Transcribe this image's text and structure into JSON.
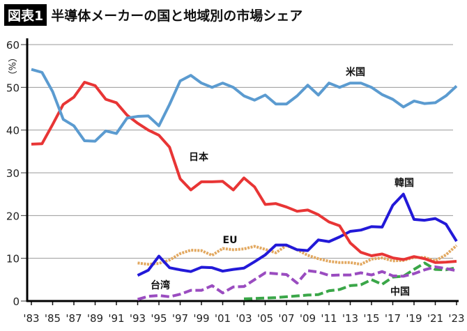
{
  "title": {
    "badge": "図表1",
    "text": "半導体メーカーの国と地域別の市場シェア"
  },
  "chart_data": {
    "type": "line",
    "title": "半導体メーカーの国と地域別の市場シェア",
    "ylabel": "（%）",
    "ylim": [
      0,
      60
    ],
    "yticks": [
      "0",
      "10",
      "20",
      "30",
      "40",
      "50",
      "60"
    ],
    "xlim": [
      1983,
      2023
    ],
    "xtick_labels": [
      "'83",
      "'85",
      "'87",
      "'89",
      "'91",
      "'93",
      "'95",
      "'97",
      "'99",
      "'01",
      "'03",
      "'05",
      "'07",
      "'09",
      "'11",
      "'13",
      "'15",
      "'17",
      "'19",
      "'21",
      "'23"
    ],
    "grid": true,
    "series": [
      {
        "name": "米国",
        "color": "#5b9bd0",
        "dash": "solid",
        "start": 1983,
        "values": [
          54.2,
          53.5,
          49,
          42.5,
          41,
          37.5,
          37.4,
          39.8,
          39.2,
          42.8,
          43.2,
          43.3,
          41,
          46,
          51.5,
          52.8,
          51,
          50,
          51,
          50,
          48,
          47,
          48.2,
          46.1,
          46.1,
          48,
          50.5,
          48.2,
          51,
          50,
          51,
          51,
          50,
          48.3,
          47.2,
          45.4,
          46.8,
          46.2,
          46.4,
          48,
          50.3
        ]
      },
      {
        "name": "日本",
        "color": "#e83535",
        "dash": "solid",
        "start": 1983,
        "values": [
          36.7,
          36.8,
          41.3,
          46,
          47.7,
          51.2,
          50.4,
          47.2,
          46.4,
          43.5,
          41.6,
          40,
          38.8,
          36,
          28.6,
          26,
          27.9,
          27.9,
          28,
          26,
          28.8,
          26.7,
          22.6,
          22.8,
          22,
          21,
          21.3,
          20.2,
          18.5,
          17.6,
          13.6,
          11.4,
          10.6,
          11,
          10.1,
          9.7,
          10.4,
          9.9,
          9,
          9.1,
          9.3
        ]
      },
      {
        "name": "韓国",
        "color": "#2219d8",
        "dash": "solid",
        "start": 1993,
        "values": [
          6,
          7.2,
          10.5,
          7.8,
          7.3,
          6.9,
          7.9,
          7.8,
          7,
          7.4,
          7.7,
          9.2,
          10.8,
          13.1,
          13.1,
          12.0,
          11.8,
          14.3,
          13.9,
          15.0,
          16.3,
          16.6,
          17.4,
          17.3,
          22.4,
          25,
          19.1,
          18.9,
          19.3,
          18.0,
          14.0
        ]
      },
      {
        "name": "EU",
        "color": "#e2a860",
        "dash": "dotted",
        "start": 1993,
        "values": [
          8.9,
          8.6,
          8.8,
          9.6,
          11.1,
          11.9,
          11.8,
          10.7,
          12.3,
          12,
          12.2,
          12.8,
          12.1,
          11.3,
          13,
          12,
          10.7,
          9.9,
          9.3,
          9.0,
          9.0,
          8.6,
          9.8,
          10.1,
          9.4,
          9.5,
          10.2,
          10.2,
          9.4,
          10.8,
          13.0
        ]
      },
      {
        "name": "台湾",
        "color": "#9a4cc0",
        "dash": "dashed",
        "start": 1993,
        "values": [
          0.4,
          1.1,
          1.3,
          1.0,
          1.6,
          2.5,
          2.5,
          3.6,
          1.9,
          3.3,
          3.4,
          5,
          6.6,
          6.4,
          6.2,
          4.2,
          7.1,
          6.8,
          6,
          6.1,
          6.1,
          6.6,
          6.1,
          6.9,
          5.9,
          5.8,
          6.4,
          7.3,
          8,
          7.6,
          7.1
        ]
      },
      {
        "name": "中国",
        "color": "#3aa648",
        "dash": "dashed",
        "start": 2003,
        "values": [
          0.5,
          0.6,
          0.7,
          0.8,
          1.0,
          1.2,
          1.4,
          1.5,
          2.4,
          2.7,
          3.6,
          3.8,
          5,
          3.9,
          5.6,
          5.8,
          7.4,
          8.9,
          7.4,
          7.3,
          7.8
        ]
      }
    ]
  }
}
